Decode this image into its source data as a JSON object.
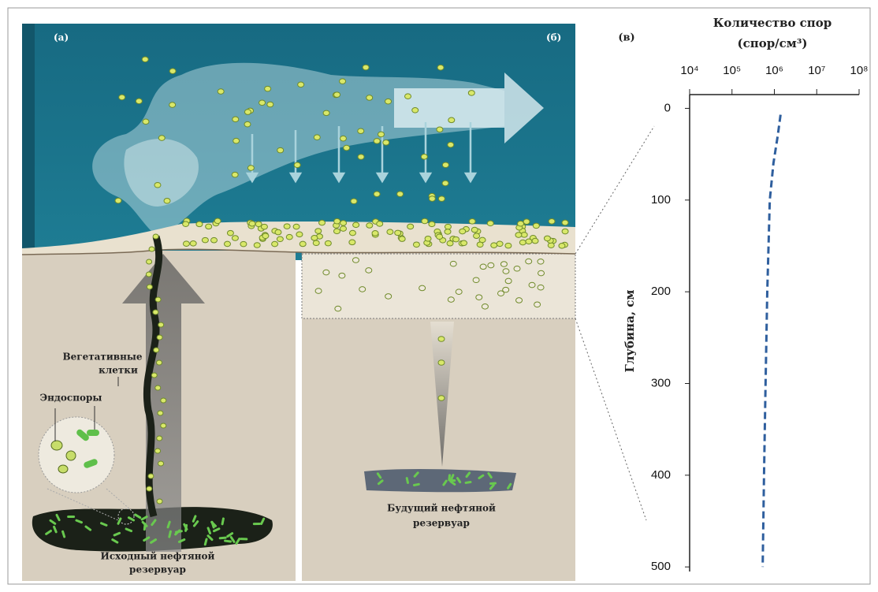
{
  "illustration": {
    "panel_labels": [
      "(а)",
      "(б)"
    ],
    "vegetative_cells": [
      "Вегетативные",
      "клетки"
    ],
    "endospores": "Эндоспоры",
    "source_reservoir": [
      "Исходный нефтяной",
      "резервуар"
    ],
    "future_reservoir": [
      "Будущий нефтяной",
      "резервуар"
    ]
  },
  "chart_data": {
    "type": "line",
    "panel_label": "(в)",
    "xlabel": [
      "Количество спор",
      "(спор/см³)"
    ],
    "ylabel": "Глубина, см",
    "xscale": "log",
    "xaxis_position": "top",
    "yinverted": true,
    "xlim": [
      10000,
      100000000
    ],
    "xticks": [
      {
        "value": 10000,
        "label": "10⁴"
      },
      {
        "value": 100000,
        "label": "10⁵"
      },
      {
        "value": 1000000,
        "label": "10⁶"
      },
      {
        "value": 10000000,
        "label": "10⁷"
      },
      {
        "value": 100000000,
        "label": "10⁸"
      }
    ],
    "ylim": [
      -15,
      505
    ],
    "yticks": [
      0,
      100,
      200,
      300,
      400,
      500
    ],
    "series": [
      {
        "color": "#2f5f9e",
        "dash": true,
        "x": [
          1400000,
          1200000,
          950000,
          780000,
          680000,
          620000,
          570000,
          530000
        ],
        "values": [
          7,
          30,
          60,
          100,
          200,
          300,
          400,
          500
        ]
      }
    ]
  }
}
